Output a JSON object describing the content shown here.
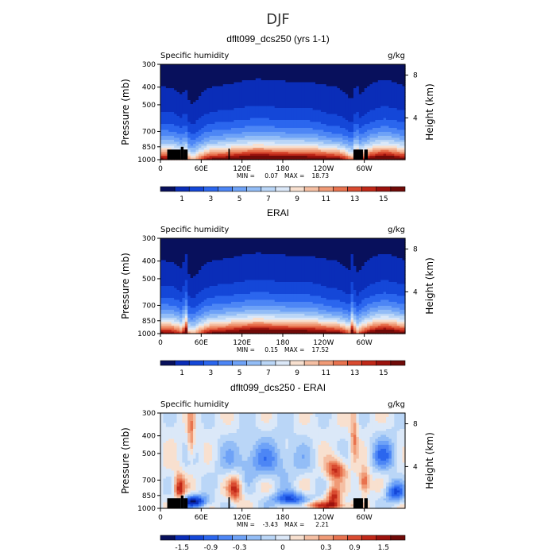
{
  "figure_title": "DJF",
  "chart_data": [
    {
      "type": "heatmap",
      "title": "dflt099_dcs250 (yrs 1-1)",
      "left_label": "Specific humidity",
      "right_label": "g/kg",
      "ylabel": "Pressure (mb)",
      "ylabel_right": "Height (km)",
      "yticks": [
        "300",
        "400",
        "500",
        "700",
        "850",
        "1000"
      ],
      "ytick_values": [
        300,
        400,
        500,
        700,
        850,
        1000
      ],
      "ylim": [
        1000,
        300
      ],
      "height_ticks": [
        "8",
        "4"
      ],
      "height_values_km": [
        8,
        4
      ],
      "xticks": [
        "0",
        "60E",
        "120E",
        "180",
        "120W",
        "60W"
      ],
      "xtick_values": [
        0,
        60,
        120,
        180,
        240,
        300
      ],
      "xlim": [
        0,
        360
      ],
      "min_label": "MIN =",
      "min_value": "0.07",
      "max_label": "MAX =",
      "max_value": "18.73",
      "colorbar_labels": [
        "1",
        "3",
        "5",
        "7",
        "9",
        "11",
        "13",
        "15"
      ],
      "colorbar_levels": [
        1,
        2,
        3,
        4,
        5,
        6,
        7,
        8,
        9,
        10,
        11,
        12,
        13,
        14,
        15
      ],
      "vmin": 0,
      "vmax": 16,
      "field_kind": "model",
      "topography_columns_deg": [
        [
          10,
          30,
          880
        ],
        [
          30,
          34,
          850
        ],
        [
          34,
          40,
          880
        ],
        [
          100,
          102,
          870
        ],
        [
          284,
          298,
          880
        ],
        [
          300,
          305,
          880
        ]
      ]
    },
    {
      "type": "heatmap",
      "title": "ERAI",
      "left_label": "Specific humidity",
      "right_label": "g/kg",
      "ylabel": "Pressure (mb)",
      "ylabel_right": "Height (km)",
      "yticks": [
        "300",
        "400",
        "500",
        "700",
        "850",
        "1000"
      ],
      "ytick_values": [
        300,
        400,
        500,
        700,
        850,
        1000
      ],
      "ylim": [
        1000,
        300
      ],
      "height_ticks": [
        "8",
        "4"
      ],
      "height_values_km": [
        8,
        4
      ],
      "xticks": [
        "0",
        "60E",
        "120E",
        "180",
        "120W",
        "60W"
      ],
      "xtick_values": [
        0,
        60,
        120,
        180,
        240,
        300
      ],
      "xlim": [
        0,
        360
      ],
      "min_label": "MIN =",
      "min_value": "0.15",
      "max_label": "MAX =",
      "max_value": "17.52",
      "colorbar_labels": [
        "1",
        "3",
        "5",
        "7",
        "9",
        "11",
        "13",
        "15"
      ],
      "colorbar_levels": [
        1,
        2,
        3,
        4,
        5,
        6,
        7,
        8,
        9,
        10,
        11,
        12,
        13,
        14,
        15
      ],
      "vmin": 0,
      "vmax": 16,
      "field_kind": "obs",
      "topography_columns_deg": []
    },
    {
      "type": "heatmap",
      "title": "dflt099_dcs250 - ERAI",
      "left_label": "Specific humidity",
      "right_label": "g/kg",
      "ylabel": "Pressure (mb)",
      "ylabel_right": "Height (km)",
      "yticks": [
        "300",
        "400",
        "500",
        "700",
        "850",
        "1000"
      ],
      "ytick_values": [
        300,
        400,
        500,
        700,
        850,
        1000
      ],
      "ylim": [
        1000,
        300
      ],
      "height_ticks": [
        "8",
        "4"
      ],
      "height_values_km": [
        8,
        4
      ],
      "xticks": [
        "0",
        "60E",
        "120E",
        "180",
        "120W",
        "60W"
      ],
      "xtick_values": [
        0,
        60,
        120,
        180,
        240,
        300
      ],
      "xlim": [
        0,
        360
      ],
      "min_label": "MIN =",
      "min_value": "-3.43",
      "max_label": "MAX =",
      "max_value": "2.21",
      "colorbar_labels": [
        "-1.5",
        "-0.9",
        "-0.3",
        "0",
        "0.3",
        "0.9",
        "1.5"
      ],
      "colorbar_levels": [
        -1.8,
        -1.5,
        -1.2,
        -0.9,
        -0.6,
        -0.3,
        -0.1,
        0,
        0.1,
        0.3,
        0.6,
        0.9,
        1.2,
        1.5,
        1.8
      ],
      "vmin": -2.1,
      "vmax": 2.1,
      "field_kind": "diff",
      "topography_columns_deg": [
        [
          10,
          30,
          880
        ],
        [
          30,
          34,
          850
        ],
        [
          34,
          40,
          880
        ],
        [
          100,
          102,
          870
        ],
        [
          284,
          298,
          880
        ],
        [
          300,
          305,
          880
        ]
      ]
    }
  ],
  "colors": {
    "palette": [
      "#08105c",
      "#0a2db8",
      "#1447d8",
      "#2b66ee",
      "#4d86f5",
      "#6ea2f7",
      "#93bdf6",
      "#bad6f7",
      "#dbe8f8",
      "#f8e0cf",
      "#f5bfa3",
      "#f09a76",
      "#e8724e",
      "#d94a30",
      "#c02818",
      "#9c120d",
      "#700a08"
    ],
    "topography": "#000000"
  }
}
